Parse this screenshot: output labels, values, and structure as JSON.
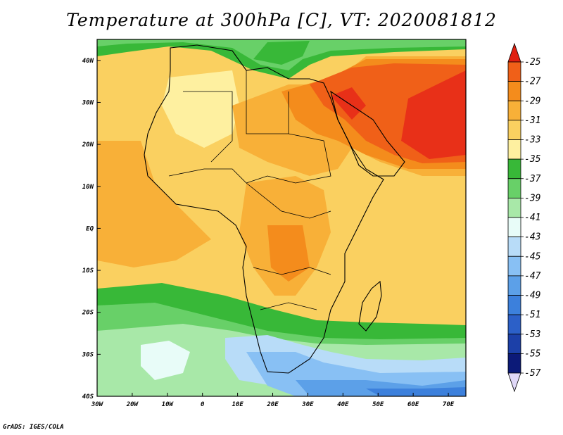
{
  "title": "Temperature at 300hPa [C], VT: 2020081812",
  "credit": "GrADS: IGES/COLA",
  "map": {
    "region": "Africa",
    "projection": "lat-lon",
    "lon_range": [
      -30,
      75
    ],
    "lat_range": [
      -40,
      45
    ],
    "lon_ticks": [
      "30W",
      "20W",
      "10W",
      "0",
      "10E",
      "20E",
      "30E",
      "40E",
      "50E",
      "60E",
      "70E"
    ],
    "lat_ticks": [
      "40N",
      "30N",
      "20N",
      "10N",
      "EQ",
      "10S",
      "20S",
      "30S",
      "40S"
    ]
  },
  "colorbar": {
    "labels": [
      "-25",
      "-27",
      "-29",
      "-31",
      "-33",
      "-35",
      "-37",
      "-39",
      "-41",
      "-43",
      "-45",
      "-47",
      "-49",
      "-51",
      "-53",
      "-55",
      "-57"
    ],
    "colors": [
      "#e83018",
      "#f06018",
      "#f48c1c",
      "#f8b038",
      "#fad060",
      "#fef0a0",
      "#38b838",
      "#68d068",
      "#a8e8a8",
      "#e8fcf8",
      "#b8dcf8",
      "#88c0f4",
      "#5ca0e8",
      "#3c80dc",
      "#2c60c8",
      "#1c40a8",
      "#0c1a78"
    ],
    "top_arrow_color": "#e02010",
    "bottom_arrow_color": "#e0d8f8"
  }
}
